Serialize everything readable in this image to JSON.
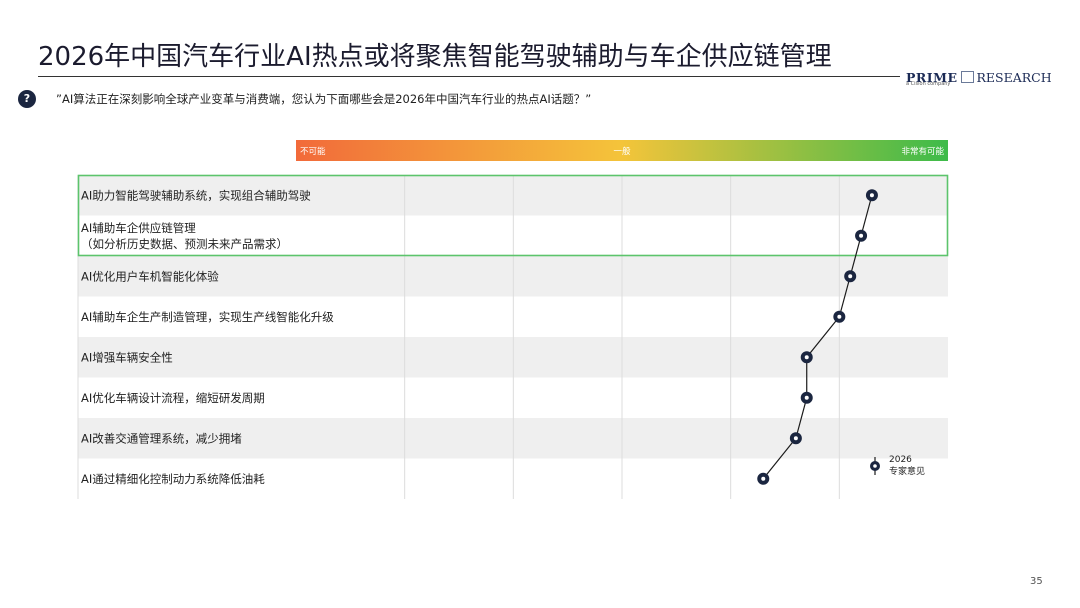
{
  "header": {
    "title": "2026年中国汽车行业AI热点或将聚焦智能驾驶辅助与车企供应链管理",
    "logo_primary": "PRIME",
    "logo_secondary": "RESEARCH",
    "logo_subtitle": "a Cision company"
  },
  "question": {
    "icon": "question-icon",
    "icon_glyph": "?",
    "text": "”AI算法正在深刻影响全球产业变革与消费端，您认为下面哪些会是2026年中国汽车行业的热点AI话题？”"
  },
  "chart_data": {
    "type": "scatter",
    "orientation": "horizontal",
    "scale_labels": [
      "不可能",
      "一般",
      "非常有可能"
    ],
    "scale_range": [
      0,
      6
    ],
    "categories": [
      [
        "AI助力智能驾驶辅助系统，实现组合辅助驾驶"
      ],
      [
        "AI辅助车企供应链管理",
        "（如分析历史数据、预测未来产品需求）"
      ],
      [
        "AI优化用户车机智能化体验"
      ],
      [
        "AI辅助车企生产制造管理，实现生产线智能化升级"
      ],
      [
        "AI增强车辆安全性"
      ],
      [
        "AI优化车辆设计流程，缩短研发周期"
      ],
      [
        "AI改善交通管理系统，减少拥堵"
      ],
      [
        "AI通过精细化控制动力系统降低油耗"
      ]
    ],
    "series": [
      {
        "name": "2026\n专家意见",
        "values": [
          5.3,
          5.2,
          5.1,
          5.0,
          4.7,
          4.7,
          4.6,
          4.3
        ]
      }
    ],
    "highlighted_rows": [
      0,
      1
    ],
    "legend_lines": [
      "2026",
      "专家意见"
    ],
    "colors": {
      "gradient": [
        "#f26a3a",
        "#f4c43a",
        "#3dbb4a"
      ],
      "marker": "#1b2640",
      "highlight": "#5cc46c"
    }
  },
  "footer": {
    "page_number": "35"
  }
}
